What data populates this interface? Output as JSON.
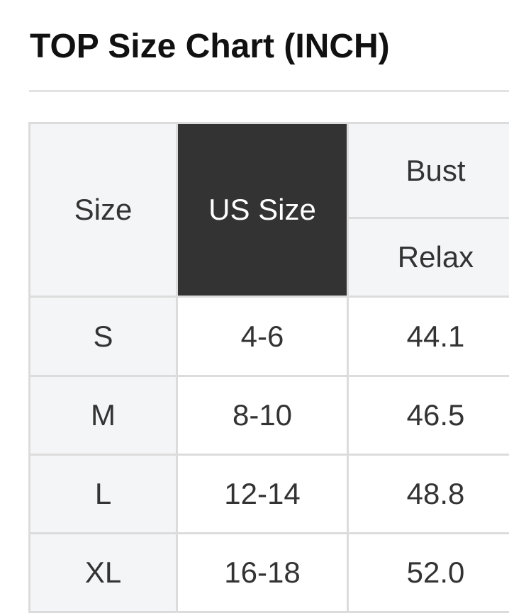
{
  "title": "TOP Size Chart (INCH)",
  "table": {
    "headers": {
      "size": "Size",
      "us_size": "US Size",
      "bust": "Bust",
      "bust_sub": "Relax"
    },
    "rows": [
      {
        "size": "S",
        "us_size": "4-6",
        "bust": "44.1"
      },
      {
        "size": "M",
        "us_size": "8-10",
        "bust": "46.5"
      },
      {
        "size": "L",
        "us_size": "12-14",
        "bust": "48.8"
      },
      {
        "size": "XL",
        "us_size": "16-18",
        "bust": "52.0"
      }
    ]
  },
  "colors": {
    "header_dark": "#333333",
    "header_light": "#f4f5f7",
    "border": "#dcdcdc"
  }
}
